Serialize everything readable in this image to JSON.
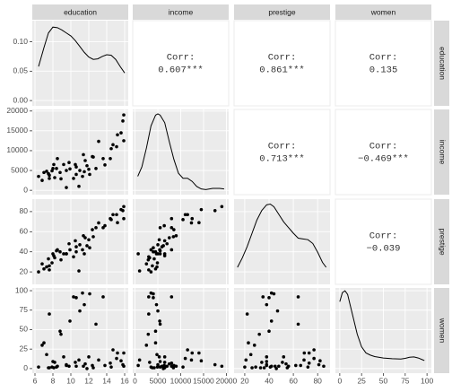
{
  "chart_data": {
    "type": "pairs",
    "grid": true,
    "point_color": "#000000",
    "line_color": "#000000",
    "corr_label": "Corr:",
    "variables": [
      {
        "name": "education",
        "xlim": [
          5.7,
          16.4
        ],
        "xticks": [
          6,
          8,
          10,
          12,
          14,
          16
        ],
        "density": {
          "x": [
            6.4,
            7,
            7.5,
            8,
            8.5,
            9,
            9.5,
            10,
            10.5,
            11,
            11.5,
            12,
            12.5,
            13,
            13.5,
            14,
            14.5,
            15,
            15.5,
            16
          ],
          "values": [
            0.058,
            0.09,
            0.115,
            0.125,
            0.124,
            0.12,
            0.115,
            0.11,
            0.102,
            0.092,
            0.082,
            0.074,
            0.07,
            0.071,
            0.075,
            0.078,
            0.077,
            0.07,
            0.058,
            0.047
          ],
          "ylim": [
            -0.009,
            0.136
          ],
          "yticks": [
            {
              "value": 0,
              "label": "0.00"
            },
            {
              "value": 0.05,
              "label": "0.05"
            },
            {
              "value": 0.1,
              "label": "0.10"
            }
          ]
        }
      },
      {
        "name": "income",
        "xlim": [
          -500,
          20500
        ],
        "xticks": [
          0,
          5000,
          10000,
          15000,
          20000
        ],
        "ylim": [
          -1100,
          20400
        ],
        "yticks": [
          0,
          5000,
          10000,
          15000,
          20000
        ],
        "density": {
          "x": [
            600,
            1500,
            2500,
            3500,
            4500,
            5000,
            5500,
            6500,
            7500,
            8500,
            9500,
            10500,
            11500,
            12500,
            13500,
            14500,
            15500,
            17000,
            18500,
            19500
          ],
          "values": [
            2.5e-05,
            4e-05,
            7e-05,
            0.000105,
            0.000122,
            0.000124,
            0.000122,
            0.00011,
            8e-05,
            5.2e-05,
            3e-05,
            2.2e-05,
            2.2e-05,
            1.7e-05,
            9e-06,
            5e-06,
            4e-06,
            6e-06,
            6e-06,
            5e-06
          ],
          "ylim": [
            -4e-06,
            0.000131
          ]
        }
      },
      {
        "name": "prestige",
        "xlim": [
          11.2,
          90.2
        ],
        "xticks": [
          20,
          40,
          60,
          80
        ],
        "ylim": [
          7.6,
          92.4
        ],
        "yticks": [
          20,
          40,
          60,
          80
        ],
        "density": {
          "x": [
            14,
            18,
            22,
            26,
            30,
            34,
            38,
            41,
            44,
            48,
            52,
            56,
            60,
            64,
            68,
            72,
            76,
            80,
            84,
            87
          ],
          "values": [
            0.0045,
            0.007,
            0.01,
            0.0135,
            0.017,
            0.0195,
            0.021,
            0.0212,
            0.0205,
            0.0185,
            0.0165,
            0.015,
            0.0135,
            0.0122,
            0.012,
            0.0118,
            0.0108,
            0.0085,
            0.0058,
            0.0045
          ],
          "ylim": [
            0,
            0.0225
          ]
        }
      },
      {
        "name": "women",
        "xlim": [
          -5,
          105
        ],
        "xticks": [
          0,
          25,
          50,
          75,
          100
        ],
        "ylim": [
          -5.9,
          103.5
        ],
        "yticks": [
          0,
          25,
          50,
          75,
          100
        ],
        "density": {
          "x": [
            0,
            3,
            6,
            9,
            12,
            15,
            20,
            25,
            30,
            35,
            40,
            50,
            60,
            70,
            75,
            80,
            85,
            90,
            95,
            97
          ],
          "values": [
            0.019,
            0.0215,
            0.022,
            0.021,
            0.018,
            0.015,
            0.01,
            0.0065,
            0.0048,
            0.0042,
            0.0038,
            0.0034,
            0.0032,
            0.0031,
            0.0033,
            0.0036,
            0.0037,
            0.0034,
            0.0029,
            0.0027
          ],
          "ylim": [
            -0.0008,
            0.0228
          ]
        }
      }
    ],
    "observations": {
      "education": [
        13.1,
        12.4,
        15.9,
        15.6,
        15.1,
        14.7,
        15.9,
        14.4,
        15.2,
        15.8,
        12.8,
        11.6,
        13.6,
        12.1,
        11.0,
        11.3,
        10.6,
        11.5,
        10.3,
        8.8,
        9.2,
        9.8,
        8.4,
        7.5,
        8.1,
        8.5,
        7.6,
        7.3,
        8.0,
        9.5,
        10.5,
        11.4,
        6.8,
        7.0,
        7.6,
        8.9,
        9.9,
        12.0,
        6.4,
        7.9,
        8.2,
        9.5,
        10.9,
        12.5,
        13.8,
        14.5,
        11.8,
        10.6
      ],
      "income": [
        12351,
        8500,
        19000,
        14500,
        11000,
        11500,
        12500,
        8000,
        14000,
        17500,
        5500,
        7500,
        8000,
        4000,
        5000,
        3500,
        4000,
        4700,
        3000,
        4500,
        6500,
        7000,
        5500,
        4200,
        6500,
        8000,
        3800,
        4800,
        5500,
        5000,
        6500,
        9000,
        2500,
        4500,
        3000,
        2900,
        5400,
        5300,
        3500,
        4900,
        3200,
        700,
        1000,
        8400,
        6400,
        10500,
        6200,
        5900
      ],
      "prestige": [
        68.8,
        62,
        85,
        82,
        77,
        77,
        73,
        73,
        69,
        81,
        64,
        54,
        64,
        44,
        47,
        42,
        40,
        38,
        35,
        40,
        38,
        48,
        41,
        33,
        36,
        42,
        26,
        25,
        38,
        38,
        51,
        56,
        28,
        23,
        22,
        32,
        42,
        52,
        20,
        29,
        34,
        38,
        21,
        55,
        66,
        72,
        46,
        45
      ],
      "women": [
        11,
        4,
        3,
        10,
        13,
        24,
        20,
        7,
        20,
        5,
        57,
        6,
        92,
        96,
        74,
        97,
        91,
        82,
        92,
        48,
        15,
        3,
        2,
        1,
        1,
        3,
        1,
        18,
        9,
        5,
        8,
        3,
        30,
        33,
        70,
        44,
        61,
        15,
        2,
        2,
        8,
        4,
        11,
        1,
        4,
        2,
        0,
        3
      ]
    },
    "correlations": [
      {
        "value": 0.607,
        "value_label": "0.607***"
      },
      {
        "value": 0.861,
        "value_label": "0.861***"
      },
      {
        "value": 0.135,
        "value_label": "0.135"
      },
      {
        "value": 0.713,
        "value_label": "0.713***"
      },
      {
        "value": -0.469,
        "value_label": "−0.469***"
      },
      {
        "value": -0.039,
        "value_label": "−0.039"
      }
    ]
  }
}
